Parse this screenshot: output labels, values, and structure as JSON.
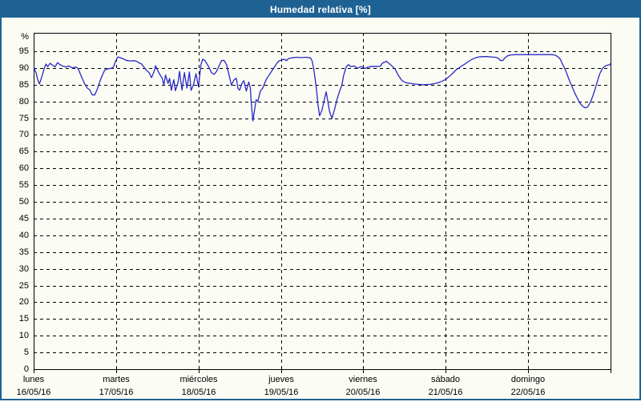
{
  "window": {
    "title": "Humedad relativa [%]"
  },
  "colors": {
    "titlebar": "#1e6294",
    "window_border": "#1e6294",
    "background": "#fbfcf4",
    "line": "#2828c8",
    "grid": "#000000",
    "text": "#000000"
  },
  "chart_data": {
    "type": "line",
    "title": "Humedad relativa [%]",
    "ylabel": "%",
    "ylim": [
      0,
      100.5
    ],
    "y_ticks": [
      0,
      5,
      10,
      15,
      20,
      25,
      30,
      35,
      40,
      45,
      50,
      55,
      60,
      65,
      70,
      75,
      80,
      85,
      90,
      95
    ],
    "grid": "dashed",
    "legend": "none",
    "x_range_days": [
      0,
      7
    ],
    "x_days": [
      {
        "name": "lunes",
        "date": "16/05/16"
      },
      {
        "name": "martes",
        "date": "17/05/16"
      },
      {
        "name": "miércoles",
        "date": "18/05/16"
      },
      {
        "name": "jueves",
        "date": "19/05/16"
      },
      {
        "name": "viernes",
        "date": "20/05/16"
      },
      {
        "name": "sábado",
        "date": "21/05/16"
      },
      {
        "name": "domingo",
        "date": "22/05/16"
      }
    ],
    "series": [
      {
        "name": "Humedad relativa",
        "unit": "%",
        "points": [
          [
            0,
            90.3
          ],
          [
            0.03,
            88.5
          ],
          [
            0.05,
            86.5
          ],
          [
            0.07,
            85.2
          ],
          [
            0.1,
            87.5
          ],
          [
            0.13,
            90
          ],
          [
            0.15,
            91.2
          ],
          [
            0.17,
            90.4
          ],
          [
            0.2,
            91.4
          ],
          [
            0.23,
            90.8
          ],
          [
            0.26,
            90.3
          ],
          [
            0.29,
            91.6
          ],
          [
            0.32,
            91
          ],
          [
            0.35,
            90.6
          ],
          [
            0.39,
            90.3
          ],
          [
            0.43,
            90.6
          ],
          [
            0.47,
            90
          ],
          [
            0.51,
            90.3
          ],
          [
            0.54,
            89.8
          ],
          [
            0.58,
            87.4
          ],
          [
            0.62,
            85.2
          ],
          [
            0.65,
            84
          ],
          [
            0.68,
            83.5
          ],
          [
            0.71,
            82
          ],
          [
            0.74,
            81.9
          ],
          [
            0.77,
            83.5
          ],
          [
            0.81,
            86.4
          ],
          [
            0.84,
            88.2
          ],
          [
            0.86,
            89.3
          ],
          [
            0.88,
            89.6
          ],
          [
            0.91,
            89.8
          ],
          [
            0.94,
            89.9
          ],
          [
            0.97,
            90.3
          ],
          [
            0.99,
            91.8
          ],
          [
            1.02,
            93.3
          ],
          [
            1.05,
            93.1
          ],
          [
            1.09,
            92.7
          ],
          [
            1.12,
            92.3
          ],
          [
            1.17,
            92.1
          ],
          [
            1.21,
            92.2
          ],
          [
            1.25,
            92
          ],
          [
            1.28,
            91.5
          ],
          [
            1.31,
            91.2
          ],
          [
            1.34,
            90.2
          ],
          [
            1.37,
            89.3
          ],
          [
            1.4,
            88.6
          ],
          [
            1.43,
            87.1
          ],
          [
            1.46,
            88.9
          ],
          [
            1.48,
            90.7
          ],
          [
            1.51,
            89
          ],
          [
            1.54,
            87.7
          ],
          [
            1.56,
            86.9
          ],
          [
            1.58,
            84.9
          ],
          [
            1.6,
            87.9
          ],
          [
            1.63,
            85.4
          ],
          [
            1.65,
            86.9
          ],
          [
            1.67,
            83.3
          ],
          [
            1.7,
            86.5
          ],
          [
            1.72,
            83.2
          ],
          [
            1.75,
            85.5
          ],
          [
            1.77,
            89
          ],
          [
            1.8,
            83.4
          ],
          [
            1.83,
            88.6
          ],
          [
            1.86,
            84
          ],
          [
            1.89,
            88.8
          ],
          [
            1.91,
            83.3
          ],
          [
            1.94,
            85
          ],
          [
            1.97,
            88.3
          ],
          [
            2,
            84.4
          ],
          [
            2.03,
            91
          ],
          [
            2.05,
            92.6
          ],
          [
            2.08,
            92.2
          ],
          [
            2.12,
            90.5
          ],
          [
            2.16,
            88.5
          ],
          [
            2.19,
            88.1
          ],
          [
            2.22,
            89
          ],
          [
            2.26,
            91.2
          ],
          [
            2.28,
            92.2
          ],
          [
            2.31,
            92.3
          ],
          [
            2.34,
            91
          ],
          [
            2.37,
            88
          ],
          [
            2.4,
            84.8
          ],
          [
            2.43,
            86.4
          ],
          [
            2.46,
            86.9
          ],
          [
            2.48,
            83.8
          ],
          [
            2.5,
            83.4
          ],
          [
            2.53,
            85.5
          ],
          [
            2.55,
            86.2
          ],
          [
            2.58,
            83.1
          ],
          [
            2.61,
            85.8
          ],
          [
            2.63,
            84
          ],
          [
            2.64,
            79.8
          ],
          [
            2.66,
            74.2
          ],
          [
            2.68,
            77.5
          ],
          [
            2.7,
            80.5
          ],
          [
            2.72,
            80
          ],
          [
            2.75,
            83.1
          ],
          [
            2.78,
            84
          ],
          [
            2.82,
            86.5
          ],
          [
            2.86,
            88
          ],
          [
            2.9,
            89.5
          ],
          [
            2.94,
            91
          ],
          [
            2.97,
            92
          ],
          [
            3,
            92.3
          ],
          [
            3.04,
            92.6
          ],
          [
            3.07,
            92.2
          ],
          [
            3.09,
            92.8
          ],
          [
            3.13,
            93
          ],
          [
            3.19,
            93.2
          ],
          [
            3.25,
            93.1
          ],
          [
            3.31,
            93.2
          ],
          [
            3.36,
            93
          ],
          [
            3.38,
            92
          ],
          [
            3.4,
            89.5
          ],
          [
            3.43,
            84
          ],
          [
            3.45,
            79
          ],
          [
            3.47,
            75.7
          ],
          [
            3.5,
            77.5
          ],
          [
            3.53,
            80.9
          ],
          [
            3.55,
            82.9
          ],
          [
            3.57,
            80
          ],
          [
            3.59,
            77
          ],
          [
            3.62,
            74.9
          ],
          [
            3.65,
            77.5
          ],
          [
            3.68,
            80.5
          ],
          [
            3.71,
            82.9
          ],
          [
            3.74,
            84.9
          ],
          [
            3.76,
            87.6
          ],
          [
            3.79,
            90.2
          ],
          [
            3.82,
            91
          ],
          [
            3.85,
            90.4
          ],
          [
            3.89,
            90.6
          ],
          [
            3.93,
            89.9
          ],
          [
            3.97,
            90.4
          ],
          [
            4,
            90.2
          ],
          [
            4.02,
            89.8
          ],
          [
            4.05,
            90.2
          ],
          [
            4.09,
            90.4
          ],
          [
            4.13,
            90.5
          ],
          [
            4.17,
            90.4
          ],
          [
            4.21,
            90.6
          ],
          [
            4.23,
            91.4
          ],
          [
            4.28,
            92
          ],
          [
            4.33,
            91
          ],
          [
            4.36,
            90.3
          ],
          [
            4.39,
            89.5
          ],
          [
            4.42,
            88
          ],
          [
            4.45,
            86.9
          ],
          [
            4.47,
            86.2
          ],
          [
            4.52,
            85.6
          ],
          [
            4.57,
            85.4
          ],
          [
            4.62,
            85.2
          ],
          [
            4.67,
            85.1
          ],
          [
            4.73,
            85
          ],
          [
            4.81,
            85.1
          ],
          [
            4.86,
            85.3
          ],
          [
            4.91,
            85.6
          ],
          [
            4.96,
            86.1
          ],
          [
            5,
            86.6
          ],
          [
            5.04,
            87.4
          ],
          [
            5.08,
            88.3
          ],
          [
            5.12,
            89.3
          ],
          [
            5.16,
            90
          ],
          [
            5.2,
            90.7
          ],
          [
            5.24,
            91.3
          ],
          [
            5.28,
            92
          ],
          [
            5.32,
            92.6
          ],
          [
            5.36,
            93
          ],
          [
            5.4,
            93.3
          ],
          [
            5.45,
            93.4
          ],
          [
            5.5,
            93.4
          ],
          [
            5.55,
            93.3
          ],
          [
            5.6,
            93.2
          ],
          [
            5.64,
            92.9
          ],
          [
            5.66,
            92.3
          ],
          [
            5.69,
            92.2
          ],
          [
            5.72,
            93
          ],
          [
            5.75,
            93.6
          ],
          [
            5.79,
            93.9
          ],
          [
            5.85,
            94
          ],
          [
            5.93,
            94
          ],
          [
            6,
            94
          ],
          [
            6.1,
            94
          ],
          [
            6.2,
            94
          ],
          [
            6.28,
            94
          ],
          [
            6.32,
            93.9
          ],
          [
            6.36,
            93.4
          ],
          [
            6.39,
            92.6
          ],
          [
            6.42,
            91
          ],
          [
            6.45,
            89.6
          ],
          [
            6.48,
            87.6
          ],
          [
            6.51,
            85.7
          ],
          [
            6.54,
            84
          ],
          [
            6.57,
            82.3
          ],
          [
            6.6,
            80.8
          ],
          [
            6.63,
            79.5
          ],
          [
            6.66,
            78.6
          ],
          [
            6.69,
            78.1
          ],
          [
            6.72,
            78.3
          ],
          [
            6.75,
            79.5
          ],
          [
            6.78,
            81.3
          ],
          [
            6.81,
            83.5
          ],
          [
            6.84,
            86
          ],
          [
            6.87,
            88.3
          ],
          [
            6.9,
            89.8
          ],
          [
            6.93,
            90.5
          ],
          [
            6.96,
            90.8
          ],
          [
            6.99,
            91
          ],
          [
            7,
            91.3
          ]
        ]
      }
    ]
  }
}
